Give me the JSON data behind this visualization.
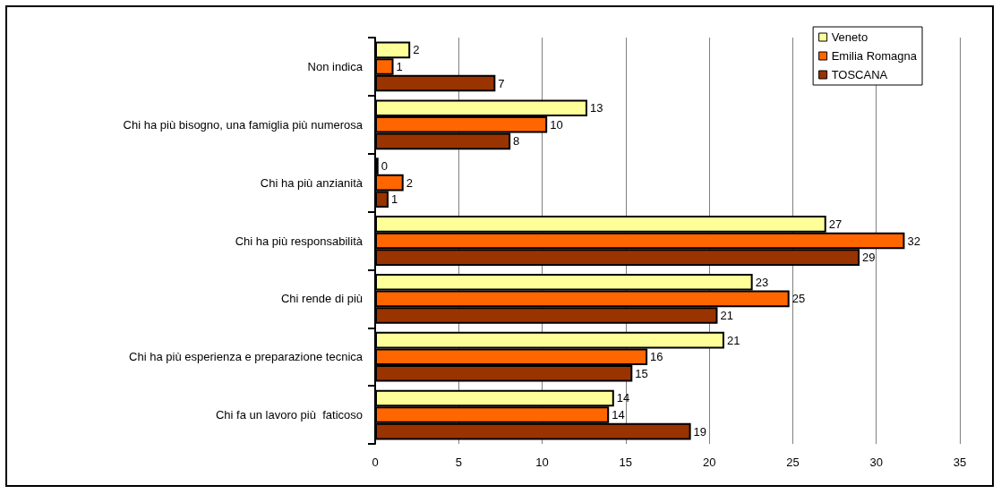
{
  "chart_data": {
    "type": "bar",
    "orientation": "horizontal",
    "categories": [
      "Non indica",
      "Chi ha più bisogno, una famiglia più numerosa",
      "Chi ha più anzianità",
      "Chi ha più responsabilità",
      "Chi rende di più",
      "Chi ha più esperienza e preparazione tecnica",
      "Chi fa un lavoro più  faticoso"
    ],
    "series": [
      {
        "name": "Veneto",
        "color": "#ffff99",
        "values": [
          2.1,
          12.7,
          0.2,
          27.0,
          22.6,
          20.9,
          14.3
        ],
        "value_labels": [
          "2",
          "13",
          "0",
          "27",
          "23",
          "21",
          "14"
        ]
      },
      {
        "name": "Emilia Romagna",
        "color": "#ff6600",
        "values": [
          1.1,
          10.3,
          1.7,
          31.7,
          24.8,
          16.3,
          14.0
        ],
        "value_labels": [
          "1",
          "10",
          "2",
          "32",
          "25",
          "16",
          "14"
        ]
      },
      {
        "name": "TOSCANA",
        "color": "#993300",
        "values": [
          7.2,
          8.1,
          0.8,
          29.0,
          20.5,
          15.4,
          18.9
        ],
        "value_labels": [
          "7",
          "8",
          "1",
          "29",
          "21",
          "15",
          "19"
        ]
      }
    ],
    "xlim": [
      0,
      35
    ],
    "xticks": [
      0,
      5,
      10,
      15,
      20,
      25,
      30,
      35
    ],
    "grid": "x",
    "legend": "top right"
  }
}
